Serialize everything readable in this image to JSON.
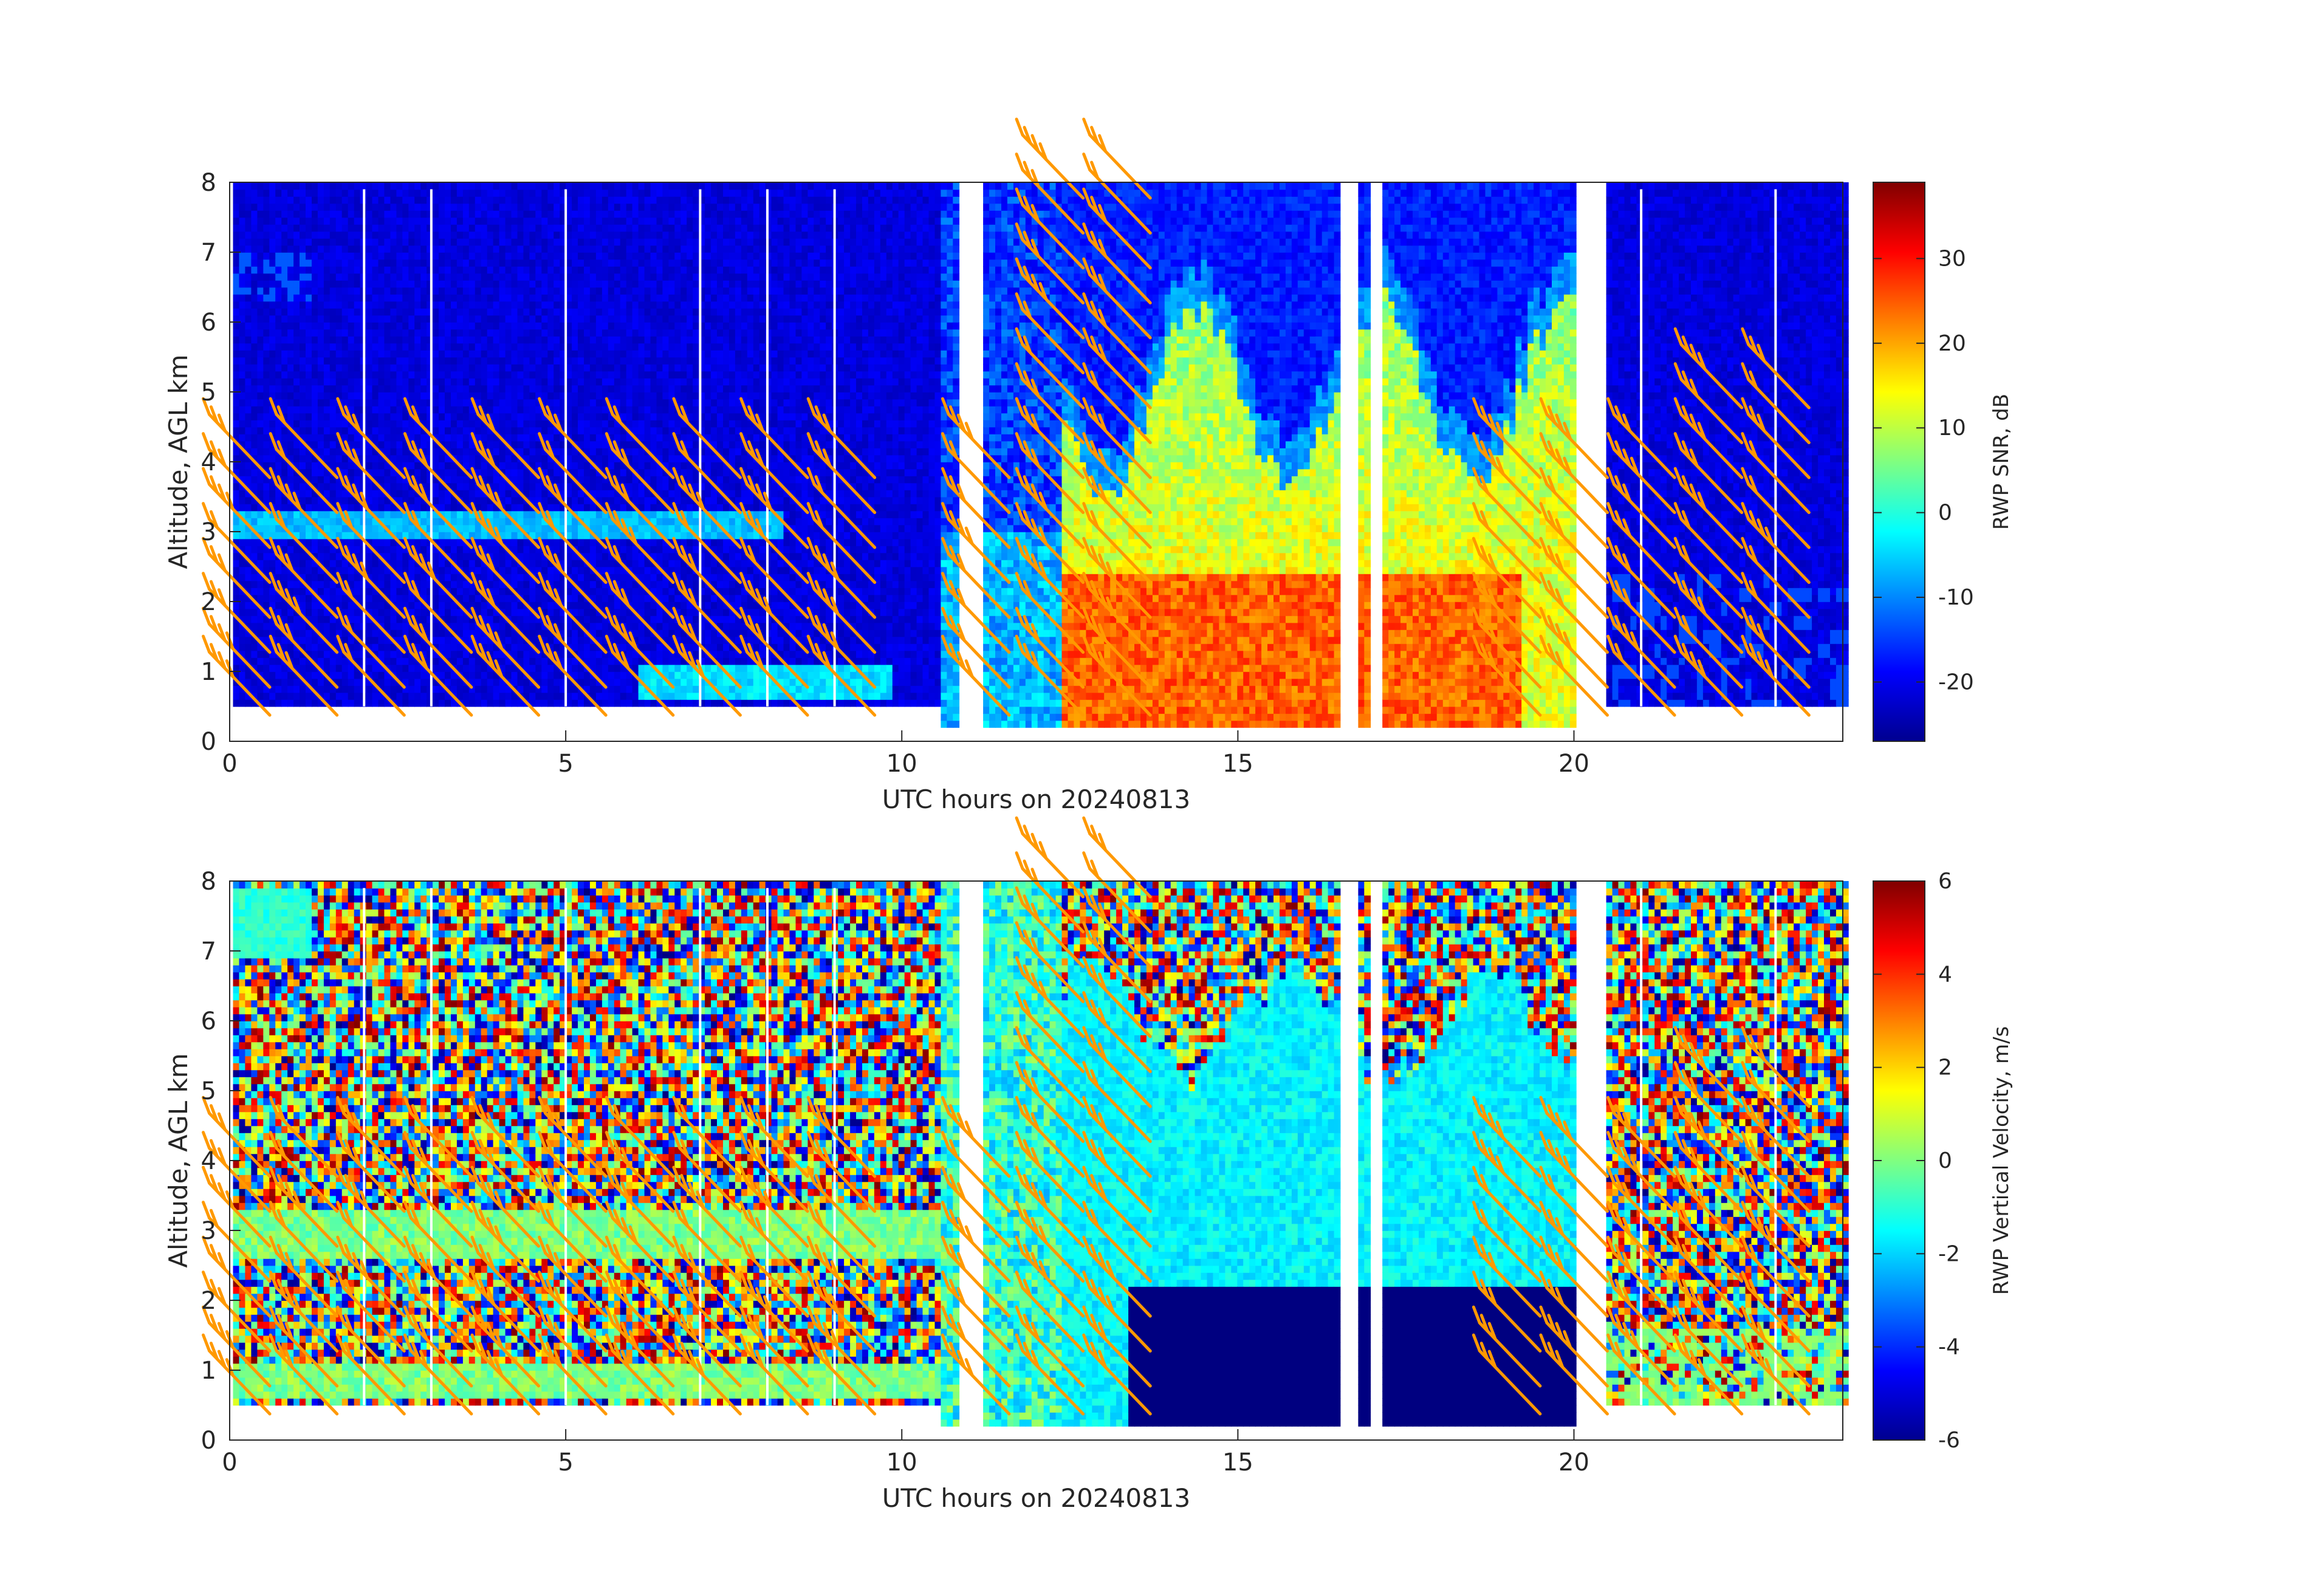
{
  "chart_data": [
    {
      "type": "heatmap",
      "title": "",
      "xlabel": "UTC hours on 20240813",
      "ylabel": "Altitude, AGL km",
      "xlim": [
        0,
        24
      ],
      "ylim": [
        0,
        8
      ],
      "xticks": [
        "0",
        "5",
        "10",
        "15",
        "20"
      ],
      "yticks": [
        "0",
        "1",
        "2",
        "3",
        "4",
        "5",
        "6",
        "7",
        "8"
      ],
      "colorbar": {
        "label": "RWP SNR, dB",
        "range": [
          -27,
          39
        ],
        "ticks": [
          "-20",
          "-10",
          "0",
          "10",
          "20",
          "30"
        ],
        "colormap": "jet"
      },
      "overlay": "wind barbs (orange)",
      "barb_color": "#ff9900",
      "data_gaps_hours": [
        [
          10.8,
          11.2
        ],
        [
          16.5,
          16.7
        ],
        [
          16.9,
          17.1
        ],
        [
          20.0,
          20.4
        ]
      ],
      "regions": [
        {
          "hours": [
            0,
            10.5
          ],
          "alt_km": [
            0.5,
            7.9
          ],
          "value": -24
        },
        {
          "hours": [
            0,
            8.2
          ],
          "alt_km": [
            2.9,
            3.3
          ],
          "value": -8
        },
        {
          "hours": [
            6,
            9.8
          ],
          "alt_km": [
            0.5,
            1.0
          ],
          "value": -5
        },
        {
          "hours": [
            12.3,
            20
          ],
          "alt_km": [
            2.0,
            5.0
          ],
          "value": 12
        },
        {
          "hours": [
            13.5,
            16.5
          ],
          "alt_km": [
            0.2,
            2.4
          ],
          "value": 25
        },
        {
          "hours": [
            17.3,
            19.2
          ],
          "alt_km": [
            0.2,
            2.4
          ],
          "value": 24
        },
        {
          "hours": [
            20.4,
            24
          ],
          "alt_km": [
            0.5,
            7.9
          ],
          "value": -22
        }
      ]
    },
    {
      "type": "heatmap",
      "title": "",
      "xlabel": "UTC hours on 20240813",
      "ylabel": "Altitude, AGL km",
      "xlim": [
        0,
        24
      ],
      "ylim": [
        0,
        8
      ],
      "xticks": [
        "0",
        "5",
        "10",
        "15",
        "20"
      ],
      "yticks": [
        "0",
        "1",
        "2",
        "3",
        "4",
        "5",
        "6",
        "7",
        "8"
      ],
      "colorbar": {
        "label": "RWP Vertical Velocity, m/s",
        "range": [
          -6,
          6
        ],
        "ticks": [
          "-6",
          "-4",
          "-2",
          "0",
          "2",
          "4",
          "6"
        ],
        "colormap": "jet"
      },
      "overlay": "wind barbs (orange)",
      "barb_color": "#ff9900",
      "data_gaps_hours": [
        [
          10.8,
          11.2
        ],
        [
          16.5,
          16.7
        ],
        [
          16.9,
          17.1
        ],
        [
          20.0,
          20.4
        ]
      ],
      "regions": [
        {
          "hours": [
            0,
            10.5
          ],
          "alt_km": [
            3.4,
            7.9
          ],
          "value": "noise (-6..6)"
        },
        {
          "hours": [
            0,
            10.5
          ],
          "alt_km": [
            2.6,
            3.3
          ],
          "value": -0.5
        },
        {
          "hours": [
            0,
            10.5
          ],
          "alt_km": [
            0.5,
            1.0
          ],
          "value": -0.5
        },
        {
          "hours": [
            12.3,
            20
          ],
          "alt_km": [
            2.2,
            6.0
          ],
          "value": -1.8
        },
        {
          "hours": [
            13.3,
            20
          ],
          "alt_km": [
            0.2,
            2.2
          ],
          "value": -6
        },
        {
          "hours": [
            20.4,
            24
          ],
          "alt_km": [
            0.5,
            7.9
          ],
          "value": "noise (-6..6)"
        }
      ]
    }
  ]
}
